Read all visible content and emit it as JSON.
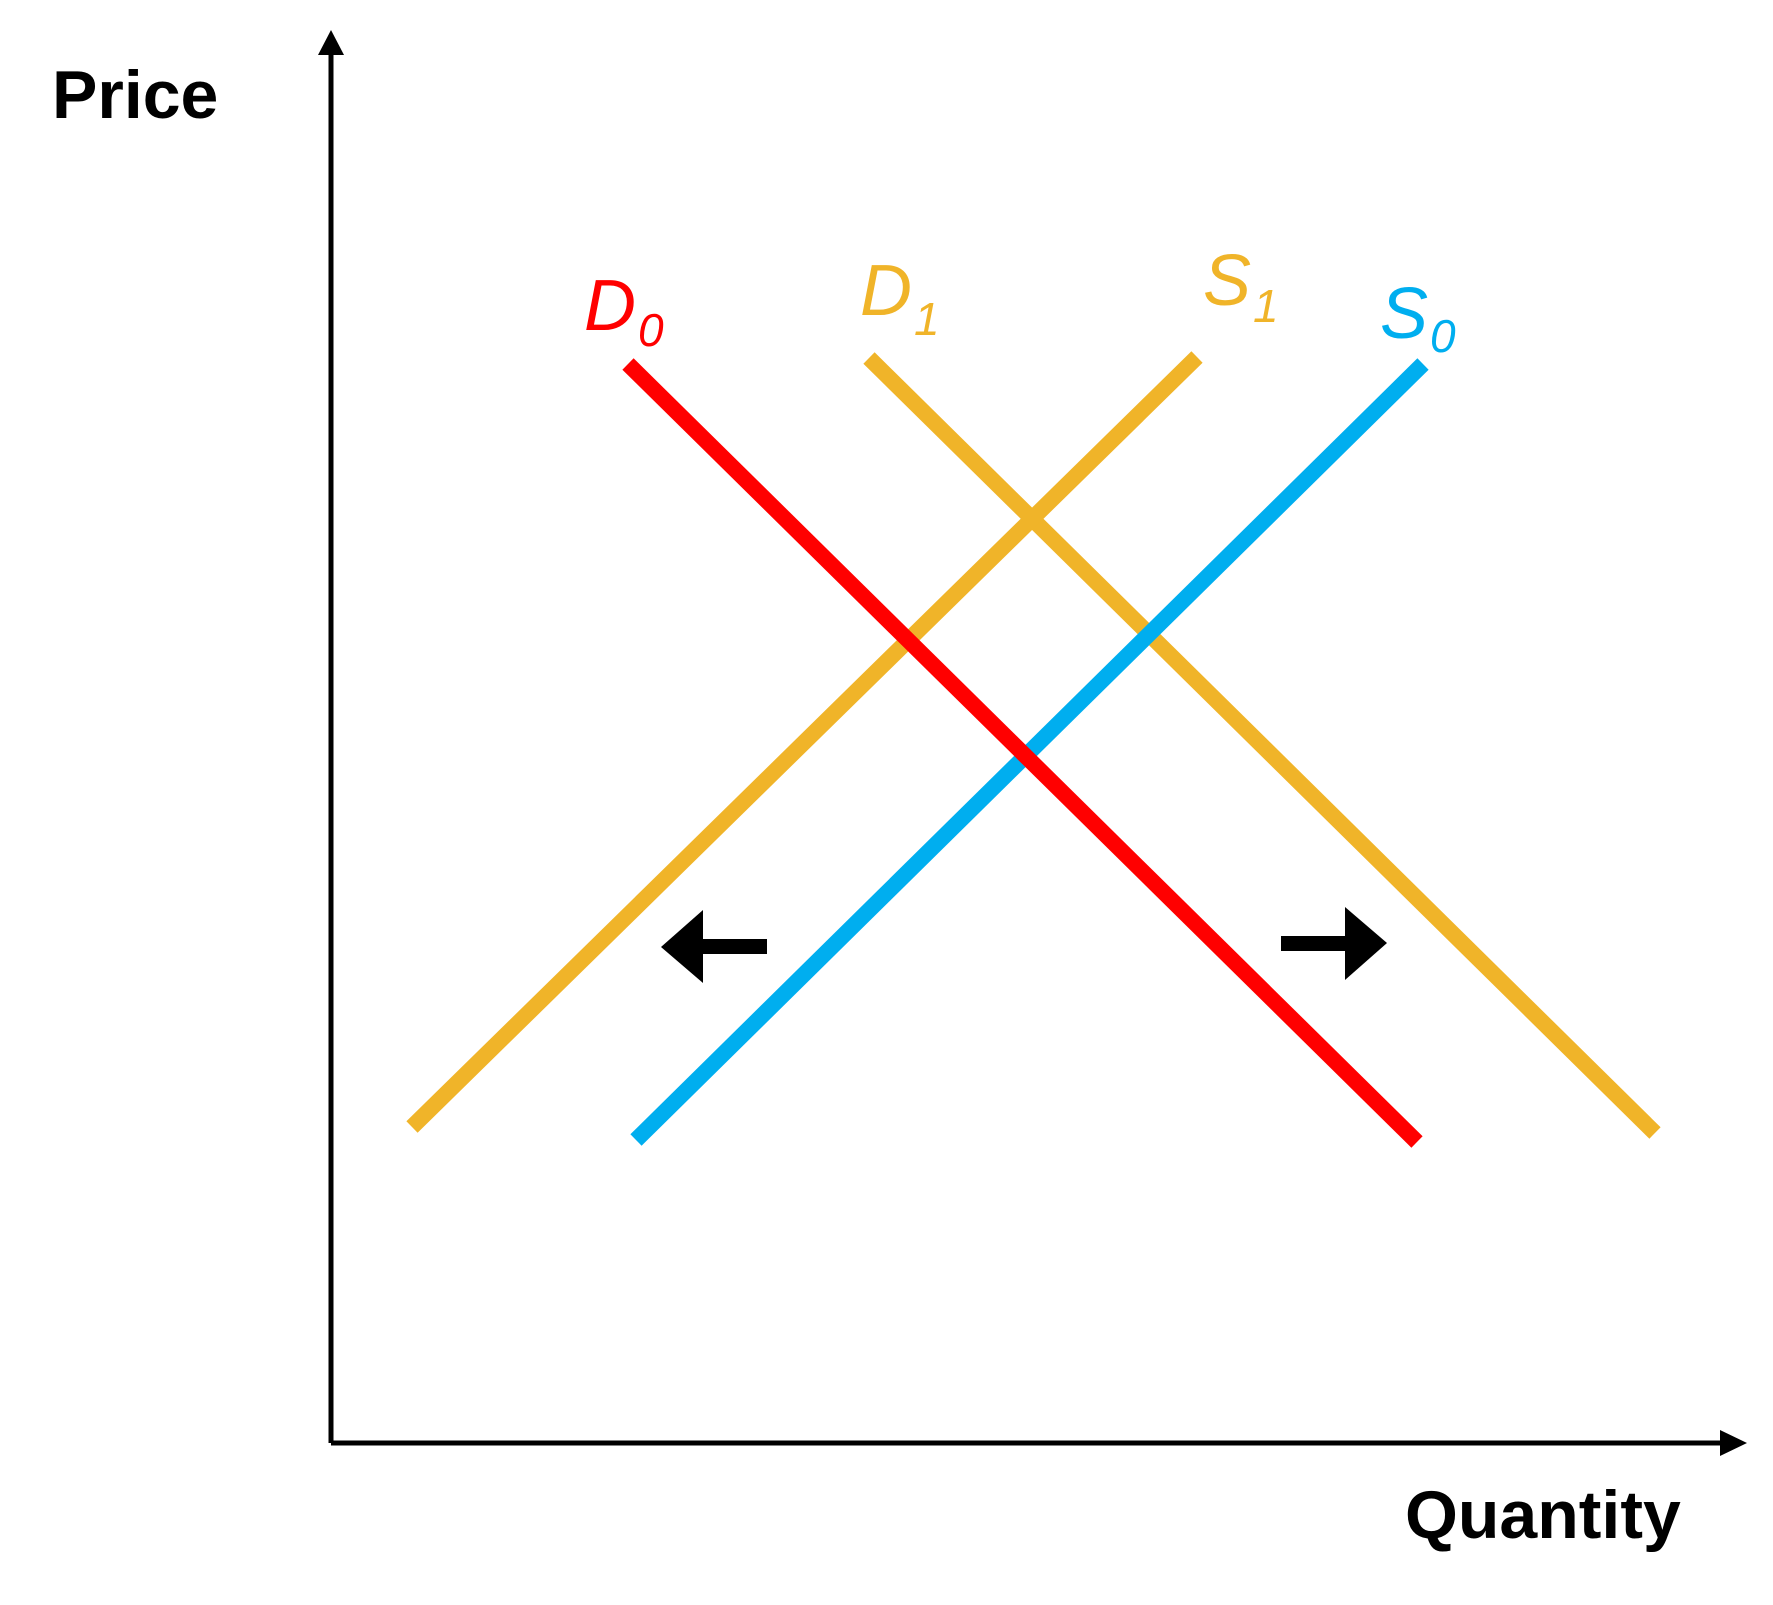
{
  "axes": {
    "y_label": "Price",
    "x_label": "Quantity"
  },
  "curves": [
    {
      "id": "d0",
      "main": "D",
      "sub": "0",
      "color": "#ff0000"
    },
    {
      "id": "d1",
      "main": "D",
      "sub": "1",
      "color": "#f0b429"
    },
    {
      "id": "s1",
      "main": "S",
      "sub": "1",
      "color": "#f0b429"
    },
    {
      "id": "s0",
      "main": "S",
      "sub": "0",
      "color": "#00aeef"
    }
  ],
  "arrows": [
    {
      "id": "left-shift",
      "direction": "left",
      "color": "#000000"
    },
    {
      "id": "right-shift",
      "direction": "right",
      "color": "#000000"
    }
  ],
  "axis_color": "#000000"
}
